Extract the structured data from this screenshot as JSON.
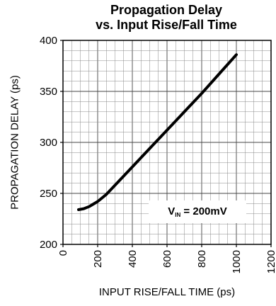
{
  "chart_data": {
    "type": "line",
    "title": "Propagation Delay",
    "subtitle": "vs. Input Rise/Fall Time",
    "xlabel": "INPUT RISE/FALL TIME (ps)",
    "ylabel": "PROPAGATION DELAY (ps)",
    "xlim": [
      0,
      1200
    ],
    "ylim": [
      200,
      400
    ],
    "x_ticks": [
      "0",
      "200",
      "400",
      "600",
      "800",
      "1000",
      "1200"
    ],
    "y_ticks": [
      "200",
      "250",
      "300",
      "350",
      "400"
    ],
    "grid": true,
    "annotation": {
      "symbol": "V",
      "subscript": "IN",
      "text": " = 200mV"
    },
    "series": [
      {
        "x": [
          90,
          120,
          150,
          200,
          250,
          300,
          400,
          500,
          600,
          700,
          800,
          900,
          1000
        ],
        "y": [
          234,
          235,
          237,
          242,
          249,
          258,
          276,
          294,
          312,
          330,
          348,
          367,
          386
        ]
      }
    ]
  }
}
